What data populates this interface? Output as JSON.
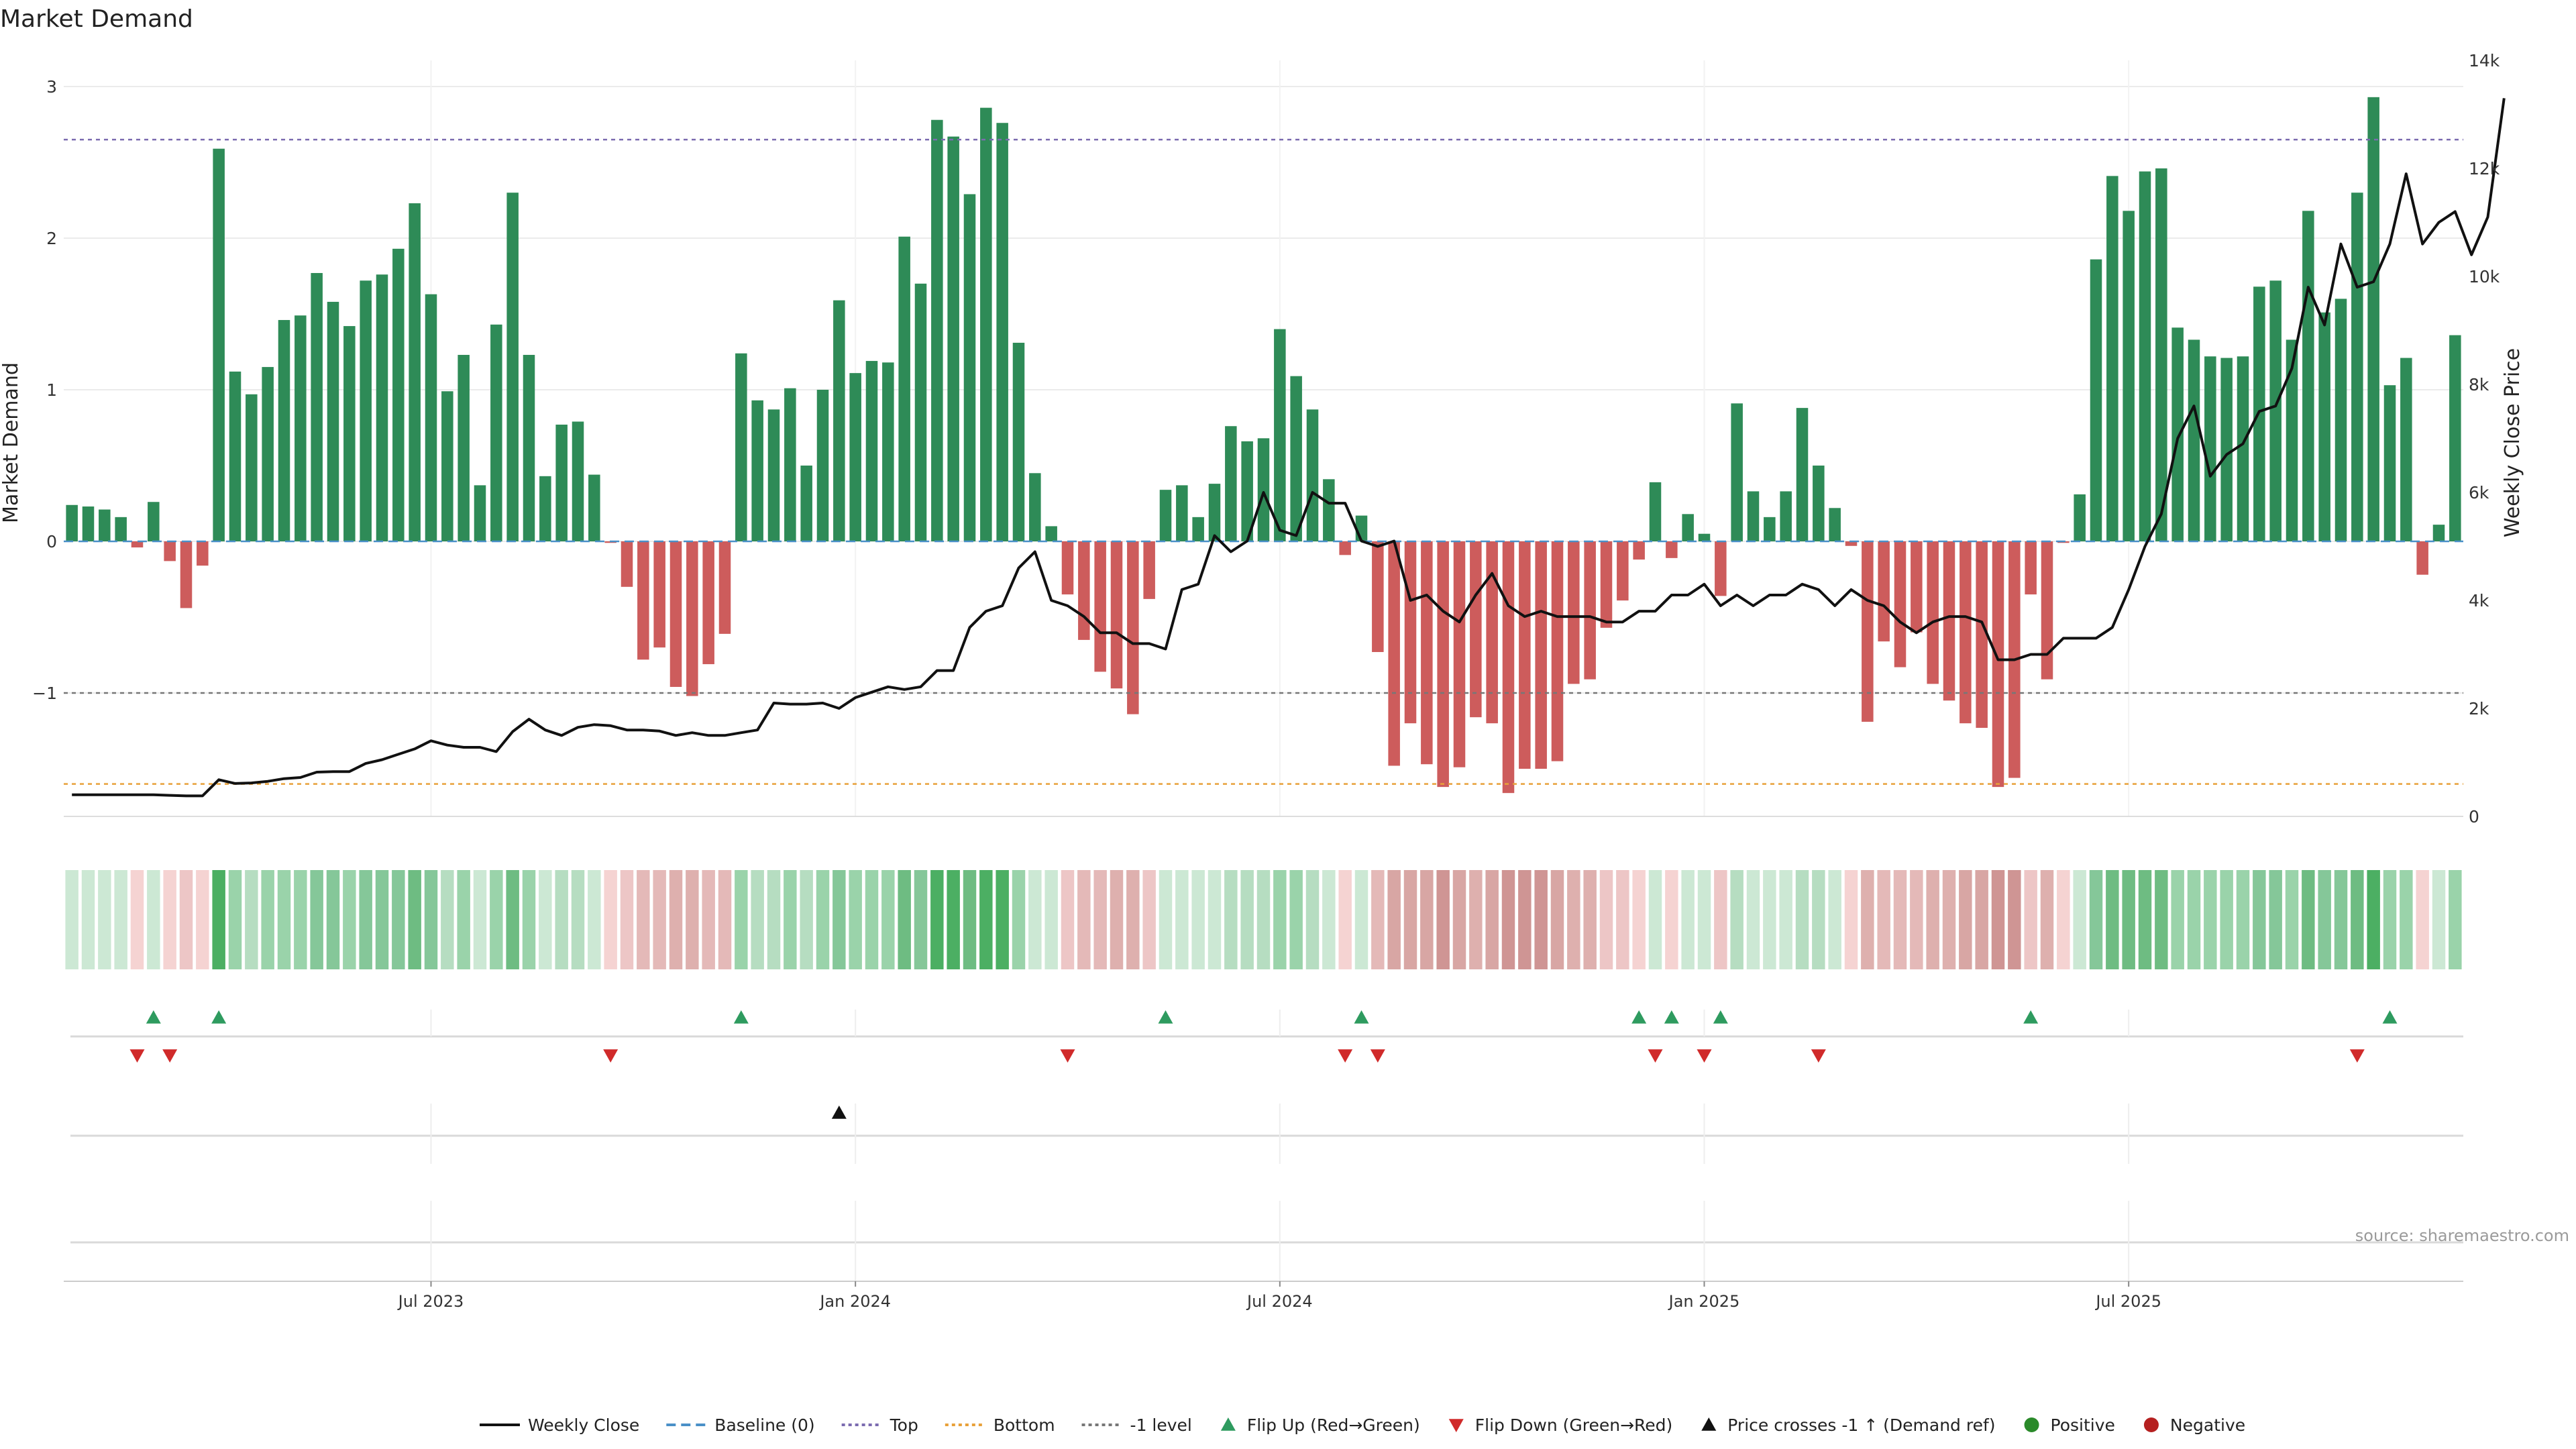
{
  "chart_data": {
    "type": "bar",
    "title": "Market Demand",
    "xlabel": "",
    "ylabel": "Market Demand",
    "y2label": "Weekly Close Price",
    "ylim": [
      -1.8,
      3.2
    ],
    "y2lim": [
      0,
      14000
    ],
    "yticks": [
      -1,
      0,
      1,
      2,
      3
    ],
    "ytick_labels": [
      "−1",
      "0",
      "1",
      "2",
      "3"
    ],
    "y2ticks": [
      0,
      2000,
      4000,
      6000,
      8000,
      10000,
      12000,
      14000
    ],
    "y2tick_labels": [
      "0",
      "2k",
      "4k",
      "6k",
      "8k",
      "10k",
      "12k",
      "14k"
    ],
    "xtick_labels": [
      "Jul 2023",
      "Jan 2024",
      "Jul 2024",
      "Jan 2025",
      "Jul 2025"
    ],
    "xtick_indices": [
      22,
      48,
      74,
      100,
      126
    ],
    "reference_lines": [
      {
        "name": "Top",
        "value": 2.65,
        "color": "#7b6bb0"
      },
      {
        "name": "-1 level",
        "value": -1,
        "color": "#777777"
      },
      {
        "name": "Bottom",
        "value": -1.6,
        "color": "#e8a13a"
      },
      {
        "name": "Baseline (0)",
        "value": 0,
        "color": "#4a90c8"
      }
    ],
    "series": [
      {
        "name": "Market Demand",
        "values": [
          0.24,
          0.23,
          0.21,
          0.16,
          -0.04,
          0.26,
          -0.13,
          -0.44,
          -0.16,
          2.59,
          1.12,
          0.97,
          1.15,
          1.46,
          1.49,
          1.77,
          1.58,
          1.42,
          1.72,
          1.76,
          1.93,
          2.23,
          1.63,
          0.99,
          1.23,
          0.37,
          1.43,
          2.3,
          1.23,
          0.43,
          0.77,
          0.79,
          0.44,
          -0.01,
          -0.3,
          -0.78,
          -0.7,
          -0.96,
          -1.02,
          -0.81,
          -0.61,
          1.24,
          0.93,
          0.87,
          1.01,
          0.5,
          1.0,
          1.59,
          1.11,
          1.19,
          1.18,
          2.01,
          1.7,
          2.78,
          2.67,
          2.29,
          2.86,
          2.76,
          1.31,
          0.45,
          0.1,
          -0.35,
          -0.65,
          -0.86,
          -0.97,
          -1.14,
          -0.38,
          0.34,
          0.37,
          0.16,
          0.38,
          0.76,
          0.66,
          0.68,
          1.4,
          1.09,
          0.87,
          0.41,
          -0.09,
          0.17,
          -0.73,
          -1.48,
          -1.2,
          -1.47,
          -1.62,
          -1.49,
          -1.16,
          -1.2,
          -1.66,
          -1.5,
          -1.5,
          -1.45,
          -0.94,
          -0.91,
          -0.57,
          -0.39,
          -0.12,
          0.39,
          -0.11,
          0.18,
          0.05,
          -0.36,
          0.91,
          0.33,
          0.16,
          0.33,
          0.88,
          0.5,
          0.22,
          -0.03,
          -1.19,
          -0.66,
          -0.83,
          -0.6,
          -0.94,
          -1.05,
          -1.2,
          -1.23,
          -1.62,
          -1.56,
          -0.35,
          -0.91,
          -0.01,
          0.31,
          1.86,
          2.41,
          2.18,
          2.44,
          2.46,
          1.41,
          1.33,
          1.22,
          1.21,
          1.22,
          1.68,
          1.72,
          1.33,
          2.18,
          1.51,
          1.6,
          2.3,
          2.93,
          1.03,
          1.21,
          -0.22,
          0.11,
          1.36
        ]
      },
      {
        "name": "Weekly Close",
        "axis": "right",
        "values": [
          400,
          400,
          400,
          400,
          400,
          400,
          390,
          380,
          380,
          680,
          610,
          620,
          650,
          700,
          720,
          820,
          830,
          830,
          980,
          1050,
          1150,
          1250,
          1400,
          1320,
          1280,
          1280,
          1200,
          1570,
          1800,
          1600,
          1500,
          1650,
          1700,
          1680,
          1600,
          1600,
          1580,
          1500,
          1550,
          1500,
          1500,
          1550,
          1600,
          2100,
          2080,
          2080,
          2100,
          2000,
          2200,
          2300,
          2400,
          2350,
          2400,
          2700,
          2700,
          3500,
          3800,
          3900,
          4600,
          4900,
          4000,
          3900,
          3700,
          3400,
          3400,
          3200,
          3200,
          3100,
          4200,
          4300,
          5200,
          4900,
          5100,
          6000,
          5300,
          5200,
          6000,
          5800,
          5800,
          5100,
          5000,
          5100,
          4000,
          4100,
          3800,
          3600,
          4100,
          4500,
          3900,
          3700,
          3800,
          3700,
          3700,
          3700,
          3600,
          3600,
          3800,
          3800,
          4100,
          4100,
          4300,
          3900,
          4100,
          3900,
          4100,
          4100,
          4300,
          4200,
          3900,
          4200,
          4000,
          3900,
          3600,
          3400,
          3600,
          3700,
          3700,
          3600,
          2900,
          2900,
          3000,
          3000,
          3300,
          3300,
          3300,
          3500,
          4200,
          5000,
          5600,
          7000,
          7600,
          6300,
          6700,
          6900,
          7500,
          7600,
          8300,
          9800,
          9100,
          10600,
          9800,
          9900,
          10600,
          11900,
          10600,
          11000,
          11200,
          10400,
          11100,
          13300
        ]
      }
    ],
    "markers": {
      "flip_up": [
        5,
        9,
        41,
        67,
        79,
        96,
        98,
        101,
        120,
        142
      ],
      "flip_down": [
        4,
        6,
        33,
        61,
        78,
        80,
        97,
        100,
        107,
        140
      ],
      "price_cross": [
        47
      ]
    },
    "strip_color_ramp": {
      "positive": [
        "#cce8d4",
        "#b6ddc1",
        "#9ad3aa",
        "#85c799",
        "#6ebc82",
        "#4caf63"
      ],
      "negative": [
        "#f5d3d2",
        "#edc6c6",
        "#e4b9b8",
        "#deb0ae",
        "#d8a6a4",
        "#cf9594"
      ]
    },
    "legend": [
      {
        "label": "Weekly Close",
        "kind": "line",
        "color": "#111111"
      },
      {
        "label": "Baseline (0)",
        "kind": "dash",
        "color": "#4a90c8"
      },
      {
        "label": "Top",
        "kind": "dot",
        "color": "#7b6bb0"
      },
      {
        "label": "Bottom",
        "kind": "dot",
        "color": "#e8a13a"
      },
      {
        "label": "-1 level",
        "kind": "dot",
        "color": "#777777"
      },
      {
        "label": "Flip Up (Red→Green)",
        "kind": "tri-up",
        "color": "#2e9b5f"
      },
      {
        "label": "Flip Down (Green→Red)",
        "kind": "tri-down",
        "color": "#d02a2a"
      },
      {
        "label": "Price crosses -1 ↑ (Demand ref)",
        "kind": "tri-up",
        "color": "#111111"
      },
      {
        "label": "Positive",
        "kind": "dot-fill",
        "color": "#2a8a2a"
      },
      {
        "label": "Negative",
        "kind": "dot-fill",
        "color": "#b52020"
      }
    ],
    "source_note": "source: sharemaestro.com",
    "colors": {
      "positive_bar": "#2e8b57",
      "negative_bar": "#cd5c5c",
      "price_line": "#111111",
      "grid": "#ebebeb"
    }
  }
}
